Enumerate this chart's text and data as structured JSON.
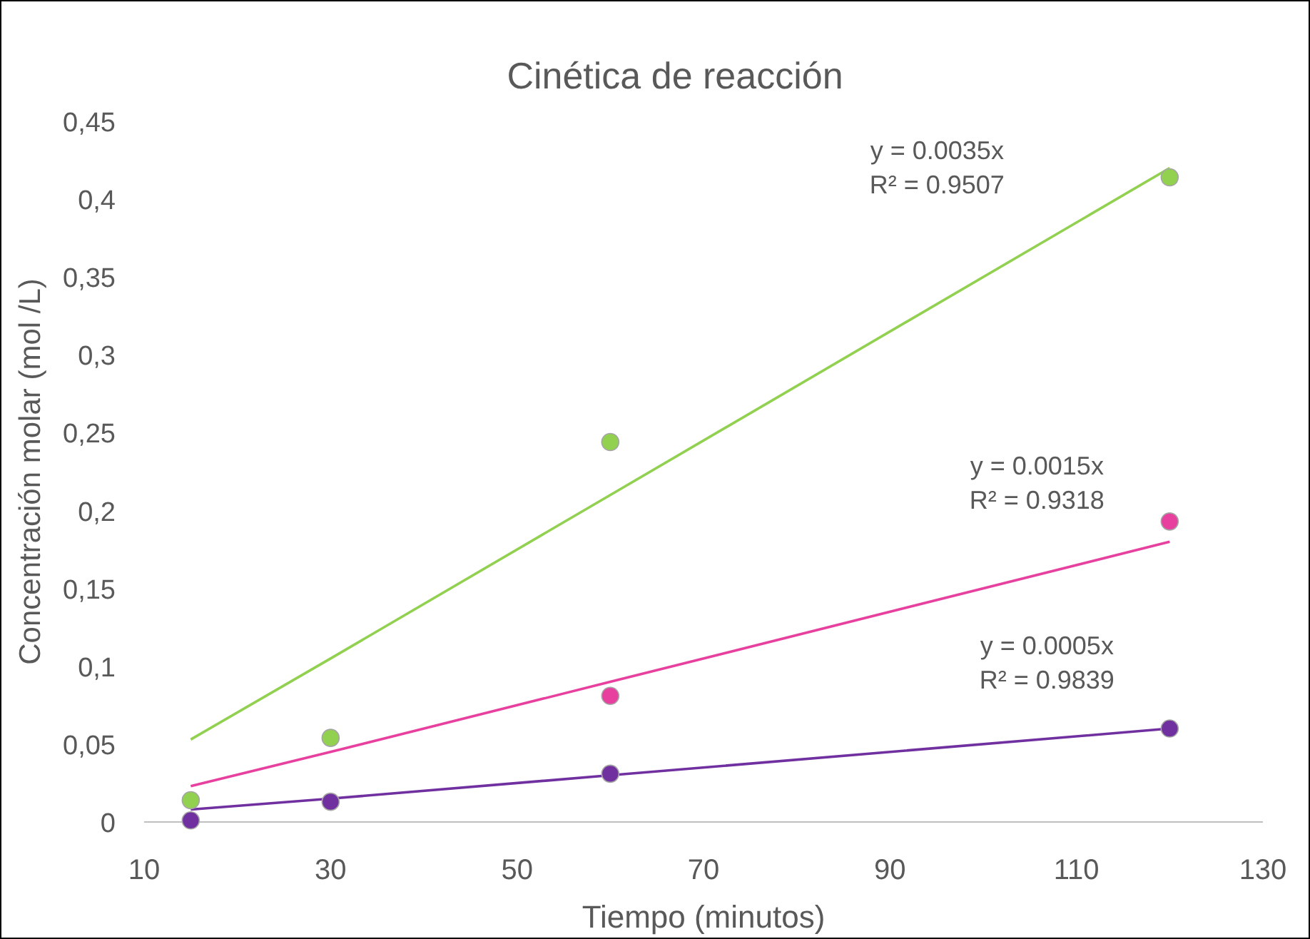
{
  "chart_data": {
    "type": "scatter",
    "title": "Cinética de reacción",
    "xlabel": "Tiempo (minutos)",
    "ylabel": "Concentración molar (mol /L)",
    "x": [
      15,
      30,
      60,
      120
    ],
    "series": [
      {
        "color": "#92d050",
        "values": [
          0.014,
          0.054,
          0.244,
          0.414
        ]
      },
      {
        "color": "#e8409f",
        "values": [
          null,
          null,
          0.081,
          0.193
        ]
      },
      {
        "color": "#7030a0",
        "values": [
          0.001,
          0.013,
          0.031,
          0.06
        ]
      },
      {
        "type": "line",
        "marker": "none",
        "color": "#92d050",
        "values": [
          0.053,
          0.105,
          0.21,
          0.42
        ]
      },
      {
        "type": "line",
        "marker": "none",
        "color": "#e8409f",
        "values": [
          0.023,
          0.045,
          0.09,
          0.18
        ]
      },
      {
        "type": "line",
        "marker": "none",
        "color": "#7030a0",
        "values": [
          0.008,
          0.015,
          0.03,
          0.06
        ]
      }
    ],
    "xlim": [
      10,
      130
    ],
    "xticks": [
      10,
      30,
      50,
      70,
      90,
      110,
      130
    ],
    "ylim": [
      0,
      0.45
    ],
    "yticks": [
      0,
      {
        "value": 0.05,
        "label": "0,05"
      },
      {
        "value": 0.1,
        "label": "0,1"
      },
      {
        "value": 0.15,
        "label": "0,15"
      },
      {
        "value": 0.2,
        "label": "0,2"
      },
      {
        "value": 0.25,
        "label": "0,25"
      },
      {
        "value": 0.3,
        "label": "0,3"
      },
      {
        "value": 0.35,
        "label": "0,35"
      },
      {
        "value": 0.4,
        "label": "0,4"
      },
      {
        "value": 0.45,
        "label": "0,45"
      }
    ],
    "marker": "circle",
    "grid": false,
    "annotations": [
      "y = 0.0035x",
      "R² = 0.9507",
      "y = 0.0015x",
      "R² = 0.9318",
      "y = 0.0005x",
      "R² = 0.9839"
    ]
  }
}
